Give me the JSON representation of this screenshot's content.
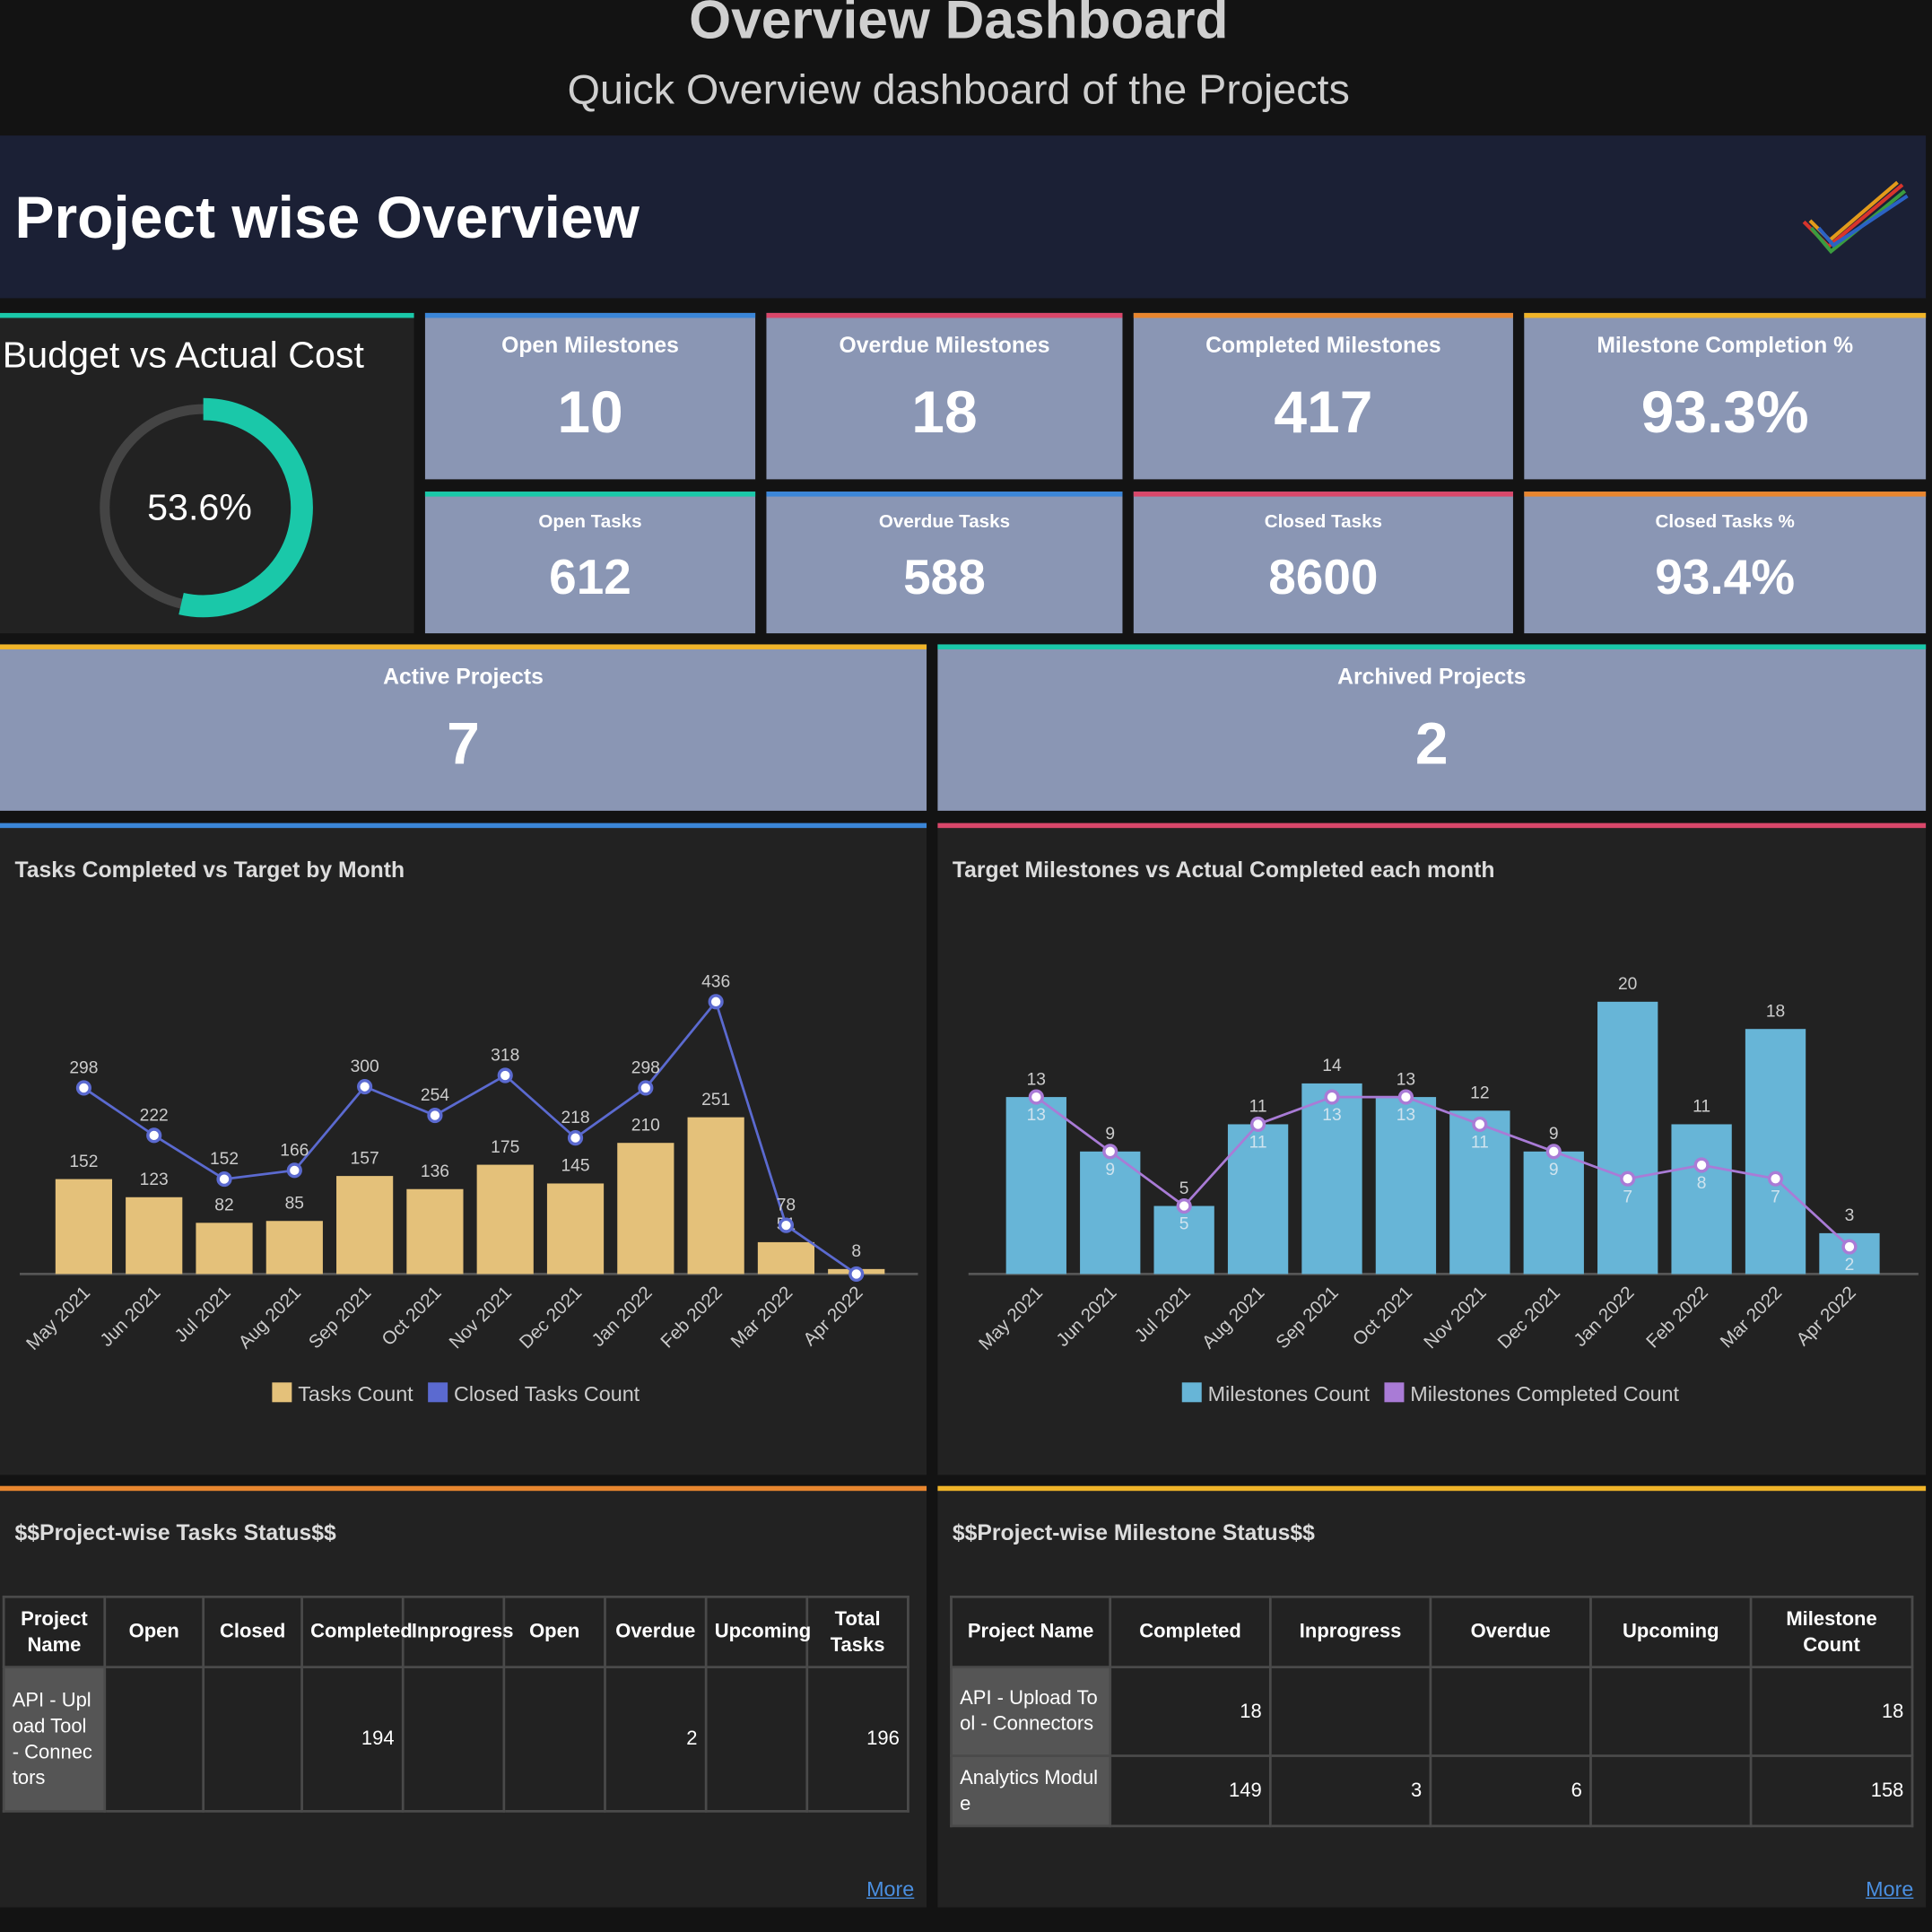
{
  "header": {
    "title": "Overview Dashboard",
    "subtitle": "Quick Overview dashboard of the Projects"
  },
  "banner": {
    "title": "Project wise Overview"
  },
  "kpis": [
    {
      "label": "Open Milestones",
      "value": 10
    },
    {
      "label": "Overdue Milestones",
      "value": 18
    },
    {
      "label": "Completed Milestones",
      "value": 417
    },
    {
      "label": "Milestone Completion %",
      "value": 93.3,
      "value_label": "93.3%"
    },
    {
      "label": "Open Tasks",
      "value": 612
    },
    {
      "label": "Overdue Tasks",
      "value": 588
    },
    {
      "label": "Closed Tasks",
      "value": 8600
    },
    {
      "label": "Closed Tasks %",
      "value": 93.4,
      "value_label": "93.4%"
    }
  ],
  "projects": [
    {
      "label": "Active Projects",
      "value": 7
    },
    {
      "label": "Archived Projects",
      "value": 2
    }
  ],
  "chart_data": [
    {
      "type": "gauge",
      "title": "Budget vs Actual Cost",
      "value": 53.6,
      "value_label": "53.6%",
      "color": "#1ac8a9"
    },
    {
      "type": "bar",
      "title": "Tasks Completed vs Target by Month",
      "categories": [
        "May 2021",
        "Jun 2021",
        "Jul 2021",
        "Aug 2021",
        "Sep 2021",
        "Oct 2021",
        "Nov 2021",
        "Dec 2021",
        "Jan 2022",
        "Feb 2022",
        "Mar 2022",
        "Apr 2022"
      ],
      "series": [
        {
          "name": "Tasks Count",
          "type": "bar",
          "color": "#e4c17a",
          "values": [
            152,
            123,
            82,
            85,
            157,
            136,
            175,
            145,
            210,
            251,
            51,
            8
          ]
        },
        {
          "name": "Closed Tasks Count",
          "type": "line",
          "color": "#5b6ad0",
          "values": [
            298,
            222,
            152,
            166,
            300,
            254,
            318,
            218,
            298,
            436,
            78,
            0
          ],
          "value_labels": [
            "298",
            "222",
            "152",
            "166",
            "300",
            "254",
            "318",
            "218",
            "298",
            "436",
            "78",
            null
          ]
        }
      ]
    },
    {
      "type": "bar",
      "title": "Target Milestones vs Actual Completed each month",
      "categories": [
        "May 2021",
        "Jun 2021",
        "Jul 2021",
        "Aug 2021",
        "Sep 2021",
        "Oct 2021",
        "Nov 2021",
        "Dec 2021",
        "Jan 2022",
        "Feb 2022",
        "Mar 2022",
        "Apr 2022"
      ],
      "series": [
        {
          "name": "Milestones Count",
          "type": "bar",
          "color": "#67b5d7",
          "values": [
            13,
            9,
            5,
            11,
            14,
            13,
            12,
            9,
            20,
            11,
            18,
            3
          ]
        },
        {
          "name": "Milestones Completed Count",
          "type": "line",
          "color": "#a97bd6",
          "values": [
            13,
            9,
            5,
            11,
            13,
            13,
            11,
            9,
            7,
            8,
            7,
            2
          ]
        }
      ]
    }
  ],
  "tables": [
    {
      "title": "$$Project-wise Tasks Status$$",
      "columns": [
        "Project Name",
        "Open",
        "Closed",
        "Completed",
        "Inprogress",
        "Open",
        "Overdue",
        "Upcoming",
        "Total Tasks"
      ],
      "rows": [
        [
          "API - Upload Tool - Connectors",
          null,
          null,
          194,
          null,
          null,
          2,
          null,
          196
        ]
      ],
      "link": "More"
    },
    {
      "title": "$$Project-wise Milestone Status$$",
      "columns": [
        "Project Name",
        "Completed",
        "Inprogress",
        "Overdue",
        "Upcoming",
        "Milestone Count"
      ],
      "rows": [
        [
          "API - Upload Tool - Connectors",
          18,
          null,
          null,
          null,
          18
        ],
        [
          "Analytics Module",
          149,
          3,
          6,
          null,
          158
        ]
      ],
      "link": "More"
    }
  ]
}
